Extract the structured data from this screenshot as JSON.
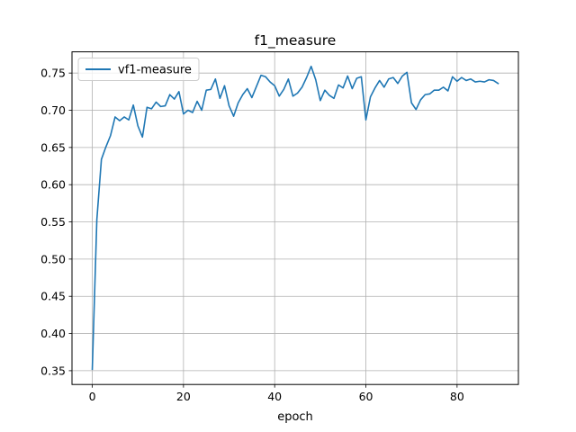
{
  "chart_data": {
    "type": "line",
    "title": "f1_measure",
    "xlabel": "epoch",
    "ylabel": "",
    "xlim": [
      -4.45,
      93.45
    ],
    "ylim": [
      0.3315,
      0.7785
    ],
    "xticks": [
      0,
      20,
      40,
      60,
      80
    ],
    "yticks": [
      0.35,
      0.4,
      0.45,
      0.5,
      0.55,
      0.6,
      0.65,
      0.7,
      0.75
    ],
    "ytick_labels": [
      "0.35",
      "0.40",
      "0.45",
      "0.50",
      "0.55",
      "0.60",
      "0.65",
      "0.70",
      "0.75"
    ],
    "grid": true,
    "legend": {
      "position": "top-left"
    },
    "colors": {
      "series": "#1f77b4",
      "grid": "#b0b0b0"
    },
    "series": [
      {
        "name": "vf1-measure",
        "x": [
          0,
          1,
          2,
          3,
          4,
          5,
          6,
          7,
          8,
          9,
          10,
          11,
          12,
          13,
          14,
          15,
          16,
          17,
          18,
          19,
          20,
          21,
          22,
          23,
          24,
          25,
          26,
          27,
          28,
          29,
          30,
          31,
          32,
          33,
          34,
          35,
          36,
          37,
          38,
          39,
          40,
          41,
          42,
          43,
          44,
          45,
          46,
          47,
          48,
          49,
          50,
          51,
          52,
          53,
          54,
          55,
          56,
          57,
          58,
          59,
          60,
          61,
          62,
          63,
          64,
          65,
          66,
          67,
          68,
          69,
          70,
          71,
          72,
          73,
          74,
          75,
          76,
          77,
          78,
          79,
          80,
          81,
          82,
          83,
          84,
          85,
          86,
          87,
          88,
          89
        ],
        "values": [
          0.352,
          0.553,
          0.634,
          0.651,
          0.666,
          0.691,
          0.686,
          0.691,
          0.687,
          0.707,
          0.679,
          0.664,
          0.704,
          0.702,
          0.711,
          0.705,
          0.706,
          0.721,
          0.715,
          0.725,
          0.695,
          0.7,
          0.697,
          0.712,
          0.7,
          0.727,
          0.728,
          0.742,
          0.716,
          0.733,
          0.706,
          0.692,
          0.71,
          0.721,
          0.729,
          0.717,
          0.732,
          0.747,
          0.745,
          0.738,
          0.733,
          0.719,
          0.728,
          0.742,
          0.719,
          0.723,
          0.731,
          0.744,
          0.759,
          0.741,
          0.713,
          0.727,
          0.72,
          0.716,
          0.734,
          0.73,
          0.746,
          0.729,
          0.743,
          0.745,
          0.687,
          0.718,
          0.73,
          0.74,
          0.731,
          0.742,
          0.744,
          0.736,
          0.746,
          0.751,
          0.71,
          0.701,
          0.714,
          0.721,
          0.722,
          0.727,
          0.727,
          0.731,
          0.726,
          0.745,
          0.739,
          0.744,
          0.74,
          0.742,
          0.738,
          0.739,
          0.738,
          0.741,
          0.74,
          0.736
        ]
      }
    ]
  }
}
